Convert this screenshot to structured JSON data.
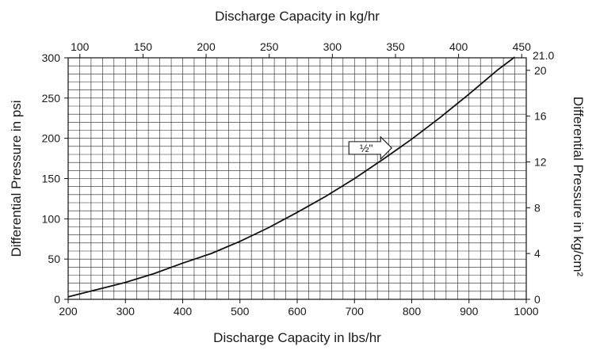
{
  "chart_data": {
    "type": "line",
    "title": "",
    "x_bottom": {
      "label": "Discharge Capacity in lbs/hr",
      "range": [
        200,
        1000
      ],
      "ticks": [
        200,
        300,
        400,
        500,
        600,
        700,
        800,
        900,
        1000
      ]
    },
    "x_top": {
      "label": "Discharge Capacity in kg/hr",
      "ticks": [
        100,
        150,
        200,
        250,
        300,
        350,
        400,
        450
      ]
    },
    "y_left": {
      "label": "Differential Pressure in psi",
      "range": [
        0,
        300
      ],
      "ticks": [
        0,
        50,
        100,
        150,
        200,
        250,
        300
      ]
    },
    "y_right": {
      "label": "Differential Pressure in kg/cm²",
      "ticks": [
        0,
        4,
        8,
        12,
        16,
        20
      ],
      "max_label": "21.0"
    },
    "grid": true,
    "series": [
      {
        "name": "½\"",
        "x": [
          200,
          250,
          300,
          350,
          400,
          450,
          500,
          550,
          600,
          650,
          700,
          750,
          800,
          850,
          900,
          950,
          980
        ],
        "y": [
          3,
          12,
          21,
          32,
          45,
          57,
          72,
          89,
          108,
          128,
          150,
          174,
          199,
          226,
          255,
          285,
          301
        ]
      }
    ],
    "annotation": {
      "text": "½\"",
      "x": 765,
      "y": 188
    }
  }
}
